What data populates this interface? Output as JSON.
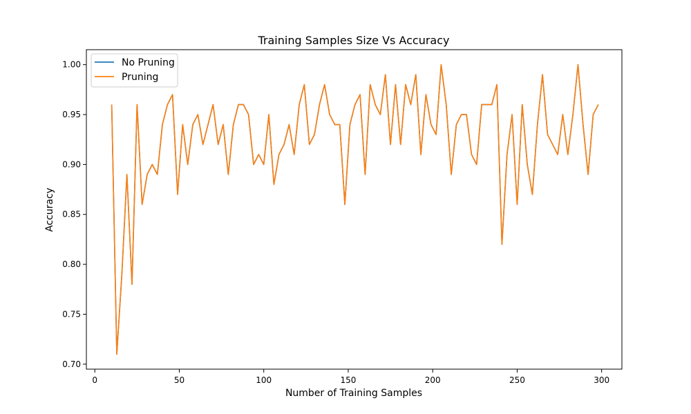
{
  "chart_data": {
    "type": "line",
    "title": "Training Samples Size Vs Accuracy",
    "xlabel": "Number of Training Samples",
    "ylabel": "Accuracy",
    "xlim": [
      -5,
      312
    ],
    "ylim": [
      0.695,
      1.015
    ],
    "xticks": [
      0,
      50,
      100,
      150,
      200,
      250,
      300
    ],
    "yticks": [
      0.7,
      0.75,
      0.8,
      0.85,
      0.9,
      0.95,
      1.0
    ],
    "legend_position": "top-left",
    "grid": false,
    "x": [
      10,
      13,
      16,
      19,
      22,
      25,
      28,
      31,
      34,
      37,
      40,
      43,
      46,
      49,
      52,
      55,
      58,
      61,
      64,
      67,
      70,
      73,
      76,
      79,
      82,
      85,
      88,
      91,
      94,
      97,
      100,
      103,
      106,
      109,
      112,
      115,
      118,
      121,
      124,
      127,
      130,
      133,
      136,
      139,
      142,
      145,
      148,
      151,
      154,
      157,
      160,
      163,
      166,
      169,
      172,
      175,
      178,
      181,
      184,
      187,
      190,
      193,
      196,
      199,
      202,
      205,
      208,
      211,
      214,
      217,
      220,
      223,
      226,
      229,
      232,
      235,
      238,
      241,
      244,
      247,
      250,
      253,
      256,
      259,
      262,
      265,
      268,
      271,
      274,
      277,
      280,
      283,
      286,
      289,
      292,
      295,
      298
    ],
    "series": [
      {
        "name": "No Pruning",
        "color": "#1f77b4",
        "values": [
          0.96,
          0.71,
          0.79,
          0.89,
          0.78,
          0.96,
          0.86,
          0.89,
          0.9,
          0.89,
          0.94,
          0.96,
          0.97,
          0.87,
          0.94,
          0.9,
          0.94,
          0.95,
          0.92,
          0.94,
          0.96,
          0.92,
          0.94,
          0.89,
          0.94,
          0.96,
          0.96,
          0.95,
          0.9,
          0.91,
          0.9,
          0.95,
          0.88,
          0.91,
          0.92,
          0.94,
          0.91,
          0.96,
          0.98,
          0.92,
          0.93,
          0.96,
          0.98,
          0.95,
          0.94,
          0.94,
          0.86,
          0.94,
          0.96,
          0.97,
          0.89,
          0.98,
          0.96,
          0.95,
          0.99,
          0.92,
          0.98,
          0.92,
          0.98,
          0.96,
          0.99,
          0.91,
          0.97,
          0.94,
          0.93,
          1.0,
          0.96,
          0.89,
          0.94,
          0.95,
          0.95,
          0.91,
          0.9,
          0.96,
          0.96,
          0.96,
          0.98,
          0.82,
          0.91,
          0.95,
          0.86,
          0.96,
          0.9,
          0.87,
          0.94,
          0.99,
          0.93,
          0.92,
          0.91,
          0.95,
          0.91,
          0.95,
          1.0,
          0.94,
          0.89,
          0.95,
          0.96
        ]
      },
      {
        "name": "Pruning",
        "color": "#ff7f0e",
        "values": [
          0.96,
          0.71,
          0.79,
          0.89,
          0.78,
          0.96,
          0.86,
          0.89,
          0.9,
          0.89,
          0.94,
          0.96,
          0.97,
          0.87,
          0.94,
          0.9,
          0.94,
          0.95,
          0.92,
          0.94,
          0.96,
          0.92,
          0.94,
          0.89,
          0.94,
          0.96,
          0.96,
          0.95,
          0.9,
          0.91,
          0.9,
          0.95,
          0.88,
          0.91,
          0.92,
          0.94,
          0.91,
          0.96,
          0.98,
          0.92,
          0.93,
          0.96,
          0.98,
          0.95,
          0.94,
          0.94,
          0.86,
          0.94,
          0.96,
          0.97,
          0.89,
          0.98,
          0.96,
          0.95,
          0.99,
          0.92,
          0.98,
          0.92,
          0.98,
          0.96,
          0.99,
          0.91,
          0.97,
          0.94,
          0.93,
          1.0,
          0.96,
          0.89,
          0.94,
          0.95,
          0.95,
          0.91,
          0.9,
          0.96,
          0.96,
          0.96,
          0.98,
          0.82,
          0.91,
          0.95,
          0.86,
          0.96,
          0.9,
          0.87,
          0.94,
          0.99,
          0.93,
          0.92,
          0.91,
          0.95,
          0.91,
          0.95,
          1.0,
          0.94,
          0.89,
          0.95,
          0.96
        ]
      }
    ]
  }
}
